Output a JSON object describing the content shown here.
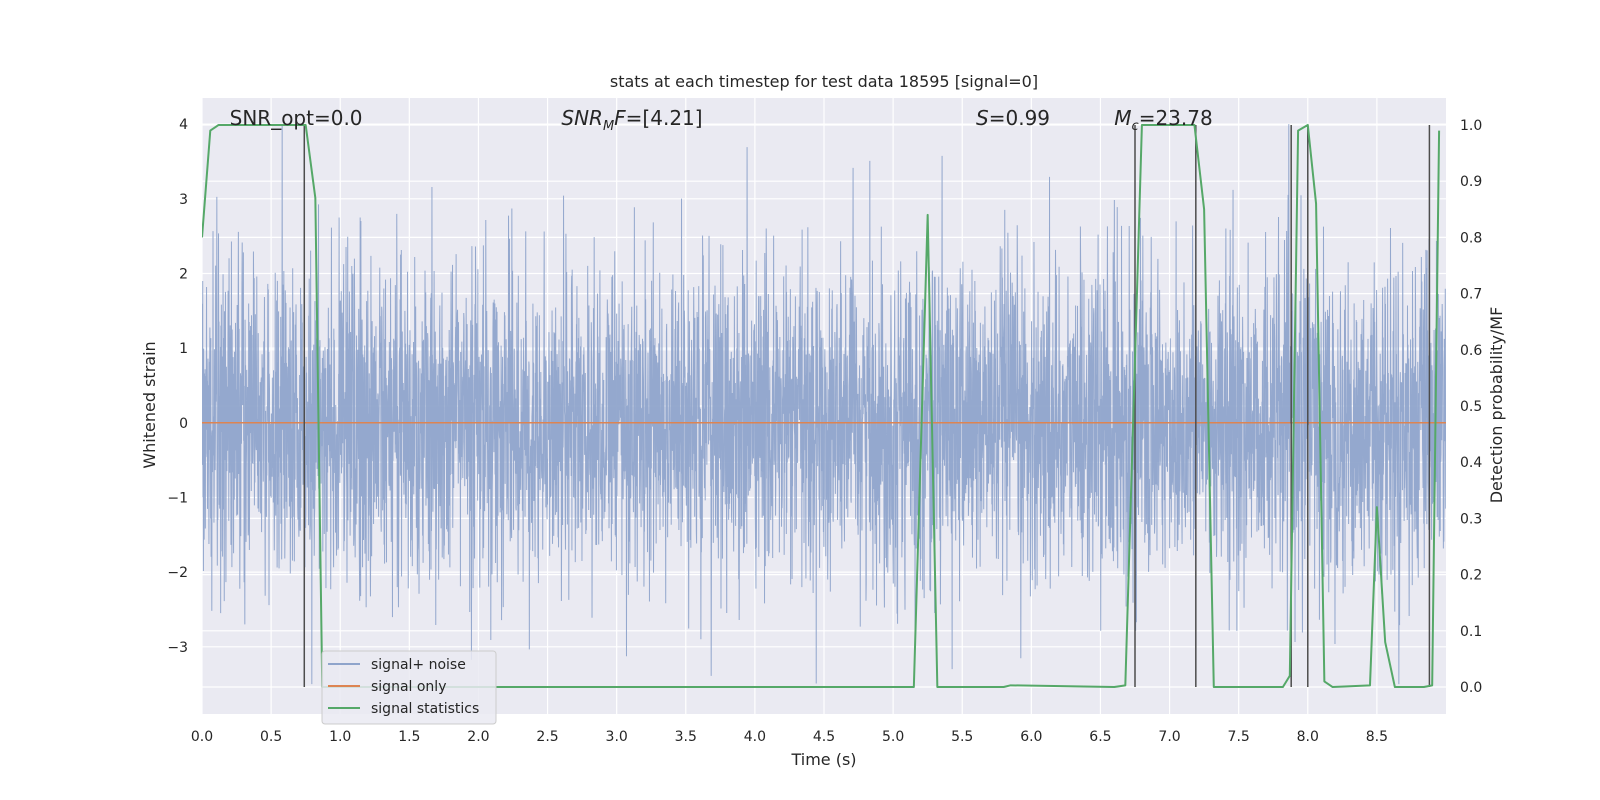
{
  "chart_data": {
    "type": "line",
    "title": "stats at each timestep for test data 18595 [signal=0]",
    "xlabel": "Time (s)",
    "ylabel": "Whitened strain",
    "y2label": "Detection probability/MF",
    "xlim": [
      0.0,
      9.0
    ],
    "ylim": [
      -3.9,
      4.35
    ],
    "y2lim": [
      -0.048,
      1.048
    ],
    "x_ticks": [
      "0.0",
      "0.5",
      "1.0",
      "1.5",
      "2.0",
      "2.5",
      "3.0",
      "3.5",
      "4.0",
      "4.5",
      "5.0",
      "5.5",
      "6.0",
      "6.5",
      "7.0",
      "7.5",
      "8.0",
      "8.5"
    ],
    "y_ticks": [
      "−3",
      "−2",
      "−1",
      "0",
      "1",
      "2",
      "3",
      "4"
    ],
    "y2_ticks": [
      "0.0",
      "0.1",
      "0.2",
      "0.3",
      "0.4",
      "0.5",
      "0.6",
      "0.7",
      "0.8",
      "0.9",
      "1.0"
    ],
    "grid": true,
    "legend_placement": "lower-left",
    "annotations": [
      {
        "id": "snr-opt",
        "text": "SNR_opt=0.0",
        "x": 0.2
      },
      {
        "id": "snr-mf",
        "prefix": "SNR",
        "sub": "M",
        "suffix": "F=[4.21]",
        "x": 2.6
      },
      {
        "id": "s-value",
        "prefix": "S",
        "suffix": "=0.99",
        "x": 5.6
      },
      {
        "id": "mc-value",
        "prefix": "M",
        "sub": "c",
        "suffix": "=23.78",
        "x": 6.6
      }
    ],
    "series": [
      {
        "name": "signal+ noise",
        "color": "#8fa4cb",
        "style": "noise",
        "amplitude_range": [
          -3.5,
          4.0
        ]
      },
      {
        "name": "signal only",
        "color": "#dd8452",
        "values": [
          {
            "x": 0.0,
            "y": 0.0
          },
          {
            "x": 9.0,
            "y": 0.0
          }
        ]
      },
      {
        "name": "signal statistics",
        "color": "#55a868",
        "axis": "right",
        "points": [
          [
            0.0,
            0.8
          ],
          [
            0.06,
            0.99
          ],
          [
            0.12,
            1.0
          ],
          [
            0.7,
            1.0
          ],
          [
            0.75,
            1.0
          ],
          [
            0.82,
            0.87
          ],
          [
            0.87,
            0.0
          ],
          [
            5.1,
            0.0
          ],
          [
            5.15,
            0.0
          ],
          [
            5.25,
            0.84
          ],
          [
            5.32,
            0.0
          ],
          [
            5.8,
            0.0
          ],
          [
            5.85,
            0.003
          ],
          [
            6.6,
            0.0
          ],
          [
            6.68,
            0.003
          ],
          [
            6.74,
            0.5
          ],
          [
            6.8,
            1.0
          ],
          [
            7.18,
            1.0
          ],
          [
            7.25,
            0.85
          ],
          [
            7.32,
            0.0
          ],
          [
            7.82,
            0.0
          ],
          [
            7.87,
            0.02
          ],
          [
            7.93,
            0.99
          ],
          [
            8.0,
            1.0
          ],
          [
            8.06,
            0.86
          ],
          [
            8.12,
            0.01
          ],
          [
            8.18,
            0.0
          ],
          [
            8.45,
            0.003
          ],
          [
            8.5,
            0.32
          ],
          [
            8.56,
            0.08
          ],
          [
            8.63,
            0.0
          ],
          [
            8.84,
            0.0
          ],
          [
            8.9,
            0.003
          ],
          [
            8.95,
            0.99
          ]
        ]
      }
    ],
    "markers": {
      "color": "#4d4d4d",
      "lines": [
        {
          "x": 0.74,
          "y2_from": 0.0,
          "y2_to": 1.0
        },
        {
          "x": 6.75,
          "y2_from": 0.0,
          "y2_to": 1.0
        },
        {
          "x": 7.19,
          "y2_from": 0.0,
          "y2_to": 1.0
        },
        {
          "x": 7.88,
          "y2_from": 0.0,
          "y2_to": 1.0
        },
        {
          "x": 8.0,
          "y2_from": 0.0,
          "y2_to": 1.0
        },
        {
          "x": 8.88,
          "y2_from": 0.0,
          "y2_to": 1.0
        }
      ]
    },
    "colors": {
      "background": "#eaeaf2",
      "grid": "#ffffff",
      "text": "#262626"
    }
  }
}
